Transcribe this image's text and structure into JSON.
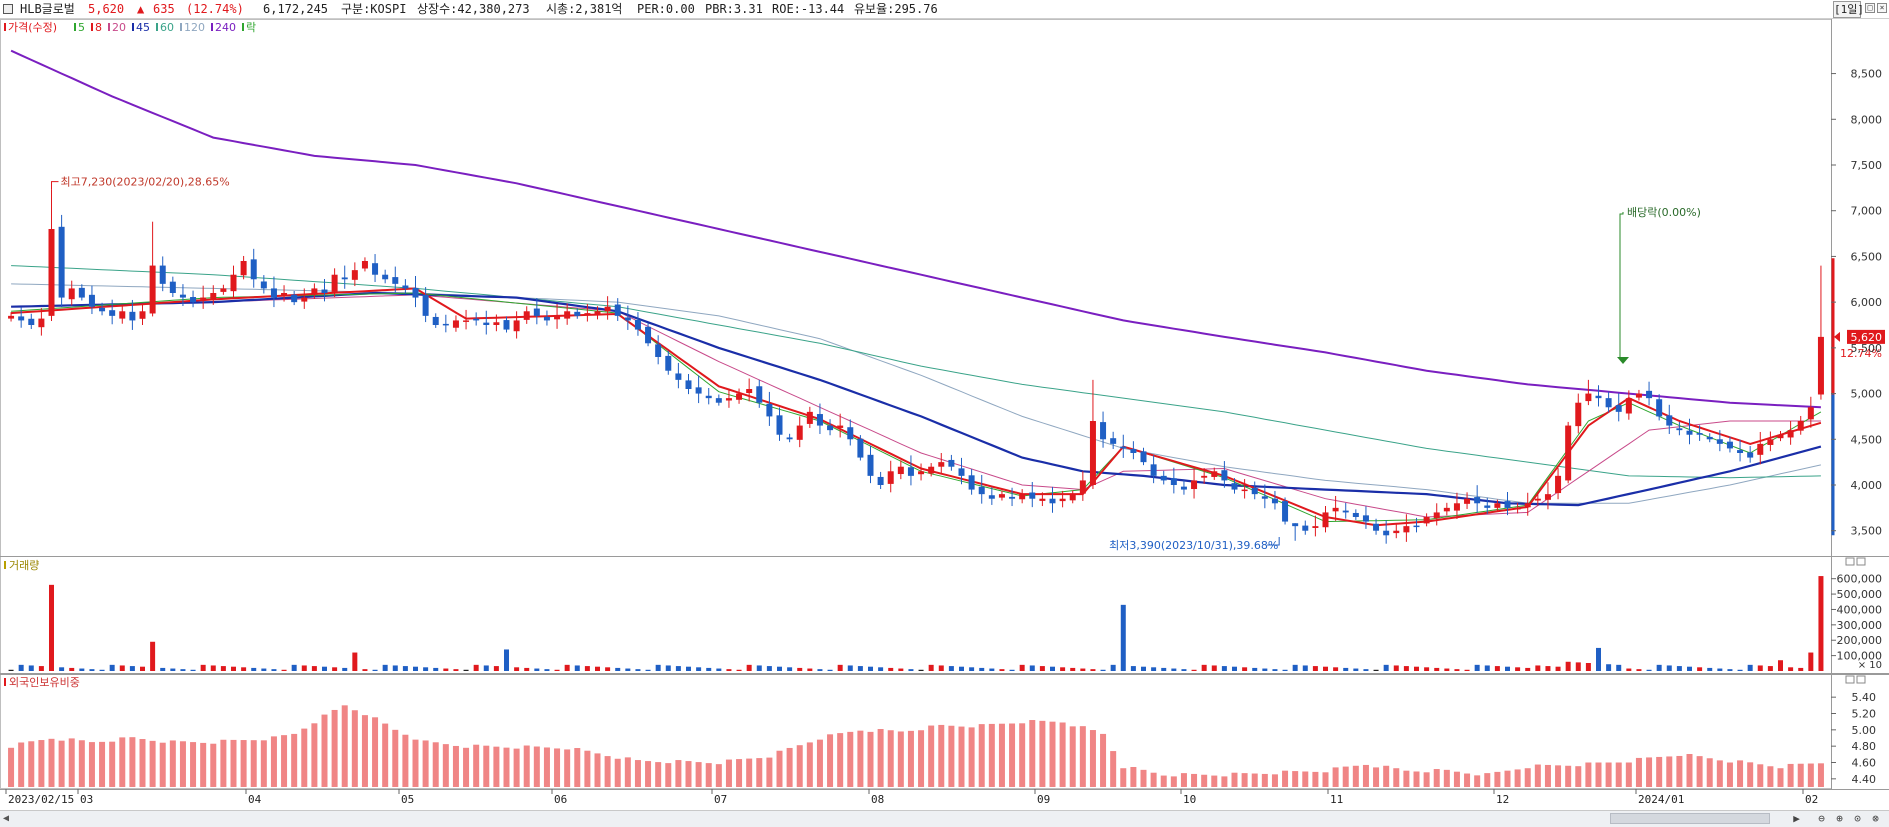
{
  "header": {
    "stock_name": "HLB글로벌",
    "price": "5,620",
    "change_arrow": "▲",
    "change": "635",
    "change_pct": "(12.74%)",
    "volume": "6,172,245",
    "market": "구분:KOSPI",
    "shares": "상장수:42,380,273",
    "market_cap": "시총:2,381억",
    "per": "PER:0.00",
    "pbr": "PBR:3.31",
    "roe": "ROE:-13.44",
    "retention": "유보율:295.76",
    "period": "[1일]"
  },
  "colors": {
    "up": "#e0191d",
    "down": "#1f5fc4",
    "ma5": "#2fa62f",
    "ma20": "#c84a8a",
    "ma45": "#1a2ea8",
    "ma60": "#3aa389",
    "ma120": "#8fa7c0",
    "ma240": "#7a1fc0",
    "foreign_bar": "#f08585"
  },
  "price_panel": {
    "legend": [
      {
        "label": "가격(수정)",
        "color": "#e0191d"
      },
      {
        "label": "5",
        "color": "#2fa62f"
      },
      {
        "label": "8",
        "color": "#e0191d"
      },
      {
        "label": "20",
        "color": "#c84a8a"
      },
      {
        "label": "45",
        "color": "#1a2ea8"
      },
      {
        "label": "60",
        "color": "#3aa389"
      },
      {
        "label": "120",
        "color": "#8fa7c0"
      },
      {
        "label": "240",
        "color": "#7a1fc0"
      },
      {
        "label": "락",
        "color": "#2fa62f"
      }
    ],
    "y_ticks": [
      "8,500",
      "8,000",
      "7,500",
      "7,000",
      "6,500",
      "6,000",
      "5,500",
      "5,000",
      "4,500",
      "4,000",
      "3,500"
    ],
    "high_label": "최고7,230(2023/02/20),28.65%",
    "low_label": "최저3,390(2023/10/31),39.68%",
    "dividend_label": "배당락(0.00%)",
    "current_price_tag": "5,620",
    "current_pct_tag": "12.74%"
  },
  "volume_panel": {
    "title": "거래량",
    "y_ticks": [
      "600,000",
      "500,000",
      "400,000",
      "300,000",
      "200,000",
      "100,000"
    ],
    "unit": "× 10"
  },
  "foreign_panel": {
    "title": "외국인보유비중",
    "y_ticks": [
      "5.40",
      "5.20",
      "5.00",
      "4.80",
      "4.60",
      "4.40"
    ]
  },
  "x_axis": {
    "labels": [
      "2023/02/15",
      "03",
      "04",
      "05",
      "06",
      "07",
      "08",
      "09",
      "10",
      "11",
      "12",
      "2024/01",
      "02"
    ]
  },
  "chart_data": {
    "type": "candlestick",
    "x_range": [
      "2023/02/15",
      "2024/01/29"
    ],
    "price_ylim": [
      3300,
      8900
    ],
    "volume_ylim": [
      0,
      650000
    ],
    "foreign_ylim": [
      4.3,
      5.5
    ],
    "anchors": {
      "high": {
        "date": "2023/02/20",
        "price": 7230
      },
      "low": {
        "date": "2023/10/31",
        "price": 3390
      },
      "last_close": 5620
    },
    "close_path": [
      [
        0,
        5850
      ],
      [
        2,
        5750
      ],
      [
        3,
        5820
      ],
      [
        4,
        6800
      ],
      [
        5,
        6050
      ],
      [
        6,
        6150
      ],
      [
        7,
        6050
      ],
      [
        8,
        5950
      ],
      [
        9,
        5900
      ],
      [
        10,
        5850
      ],
      [
        11,
        5900
      ],
      [
        12,
        5800
      ],
      [
        13,
        5900
      ],
      [
        14,
        6400
      ],
      [
        15,
        6200
      ],
      [
        16,
        6100
      ],
      [
        17,
        6050
      ],
      [
        18,
        6000
      ],
      [
        19,
        6050
      ],
      [
        20,
        6100
      ],
      [
        21,
        6150
      ],
      [
        22,
        6300
      ],
      [
        23,
        6450
      ],
      [
        24,
        6250
      ],
      [
        25,
        6150
      ],
      [
        26,
        6050
      ],
      [
        27,
        6100
      ],
      [
        28,
        6000
      ],
      [
        29,
        6050
      ],
      [
        30,
        6150
      ],
      [
        31,
        6100
      ],
      [
        32,
        6300
      ],
      [
        33,
        6250
      ],
      [
        34,
        6350
      ],
      [
        35,
        6450
      ],
      [
        36,
        6300
      ],
      [
        37,
        6250
      ],
      [
        38,
        6200
      ],
      [
        39,
        6150
      ],
      [
        40,
        6050
      ],
      [
        41,
        5850
      ],
      [
        42,
        5750
      ],
      [
        43,
        5750
      ],
      [
        44,
        5800
      ],
      [
        45,
        5800
      ],
      [
        46,
        5800
      ],
      [
        47,
        5750
      ],
      [
        48,
        5780
      ],
      [
        49,
        5700
      ],
      [
        50,
        5800
      ],
      [
        51,
        5900
      ],
      [
        52,
        5850
      ],
      [
        53,
        5800
      ],
      [
        54,
        5850
      ],
      [
        55,
        5900
      ],
      [
        56,
        5850
      ],
      [
        57,
        5880
      ],
      [
        58,
        5900
      ],
      [
        59,
        5950
      ],
      [
        60,
        5850
      ],
      [
        61,
        5800
      ],
      [
        62,
        5700
      ],
      [
        63,
        5550
      ],
      [
        64,
        5400
      ],
      [
        65,
        5250
      ],
      [
        66,
        5150
      ],
      [
        67,
        5050
      ],
      [
        68,
        5000
      ],
      [
        69,
        4950
      ],
      [
        70,
        4900
      ],
      [
        71,
        4950
      ],
      [
        72,
        5000
      ],
      [
        73,
        5050
      ],
      [
        74,
        4900
      ],
      [
        75,
        4750
      ],
      [
        76,
        4550
      ],
      [
        77,
        4500
      ],
      [
        78,
        4650
      ],
      [
        79,
        4800
      ],
      [
        80,
        4650
      ],
      [
        81,
        4600
      ],
      [
        82,
        4650
      ],
      [
        83,
        4500
      ],
      [
        84,
        4300
      ],
      [
        85,
        4100
      ],
      [
        86,
        4000
      ],
      [
        87,
        4150
      ],
      [
        88,
        4200
      ],
      [
        89,
        4100
      ],
      [
        90,
        4150
      ],
      [
        91,
        4200
      ],
      [
        92,
        4250
      ],
      [
        93,
        4200
      ],
      [
        94,
        4100
      ],
      [
        95,
        3950
      ],
      [
        96,
        3900
      ],
      [
        97,
        3850
      ],
      [
        98,
        3900
      ],
      [
        99,
        3850
      ],
      [
        100,
        3900
      ],
      [
        101,
        3850
      ],
      [
        102,
        3850
      ],
      [
        103,
        3800
      ],
      [
        104,
        3850
      ],
      [
        105,
        3900
      ],
      [
        106,
        4050
      ],
      [
        107,
        4700
      ],
      [
        108,
        4500
      ],
      [
        109,
        4450
      ],
      [
        110,
        4400
      ],
      [
        111,
        4350
      ],
      [
        112,
        4250
      ],
      [
        113,
        4100
      ],
      [
        114,
        4050
      ],
      [
        115,
        4000
      ],
      [
        116,
        3950
      ],
      [
        117,
        4050
      ],
      [
        118,
        4100
      ],
      [
        119,
        4150
      ],
      [
        120,
        4050
      ],
      [
        121,
        3950
      ],
      [
        122,
        3950
      ],
      [
        123,
        3900
      ],
      [
        124,
        3850
      ],
      [
        125,
        3800
      ],
      [
        126,
        3600
      ],
      [
        127,
        3550
      ],
      [
        128,
        3500
      ],
      [
        129,
        3550
      ],
      [
        130,
        3700
      ],
      [
        131,
        3750
      ],
      [
        132,
        3700
      ],
      [
        133,
        3650
      ],
      [
        134,
        3600
      ],
      [
        135,
        3500
      ],
      [
        136,
        3450
      ],
      [
        137,
        3500
      ],
      [
        138,
        3550
      ],
      [
        139,
        3550
      ],
      [
        140,
        3650
      ],
      [
        141,
        3700
      ],
      [
        142,
        3750
      ],
      [
        143,
        3800
      ],
      [
        144,
        3850
      ],
      [
        145,
        3800
      ],
      [
        146,
        3750
      ],
      [
        147,
        3800
      ],
      [
        148,
        3750
      ],
      [
        149,
        3750
      ],
      [
        150,
        3800
      ],
      [
        151,
        3850
      ],
      [
        152,
        3900
      ],
      [
        153,
        4100
      ],
      [
        154,
        4650
      ],
      [
        155,
        4900
      ],
      [
        156,
        5000
      ],
      [
        157,
        4950
      ],
      [
        158,
        4850
      ],
      [
        159,
        4800
      ],
      [
        160,
        4950
      ],
      [
        161,
        5000
      ],
      [
        162,
        4950
      ],
      [
        163,
        4750
      ],
      [
        164,
        4650
      ],
      [
        165,
        4600
      ],
      [
        166,
        4550
      ],
      [
        167,
        4550
      ],
      [
        168,
        4500
      ],
      [
        169,
        4450
      ],
      [
        170,
        4400
      ],
      [
        171,
        4350
      ],
      [
        172,
        4300
      ],
      [
        173,
        4450
      ],
      [
        174,
        4500
      ],
      [
        175,
        4550
      ],
      [
        176,
        4600
      ],
      [
        177,
        4700
      ],
      [
        178,
        4850
      ],
      [
        179,
        5620
      ]
    ],
    "ma_paths": {
      "ma5": [
        [
          0,
          5900
        ],
        [
          20,
          6050
        ],
        [
          40,
          6100
        ],
        [
          60,
          5880
        ],
        [
          70,
          5020
        ],
        [
          80,
          4700
        ],
        [
          90,
          4150
        ],
        [
          100,
          3880
        ],
        [
          106,
          3950
        ],
        [
          110,
          4420
        ],
        [
          120,
          4080
        ],
        [
          130,
          3600
        ],
        [
          140,
          3620
        ],
        [
          150,
          3780
        ],
        [
          156,
          4700
        ],
        [
          160,
          4900
        ],
        [
          165,
          4650
        ],
        [
          172,
          4350
        ],
        [
          179,
          4800
        ]
      ],
      "ma8": [
        [
          0,
          5880
        ],
        [
          20,
          6030
        ],
        [
          40,
          6150
        ],
        [
          45,
          5820
        ],
        [
          60,
          5870
        ],
        [
          70,
          5080
        ],
        [
          80,
          4720
        ],
        [
          90,
          4180
        ],
        [
          100,
          3900
        ],
        [
          106,
          3900
        ],
        [
          110,
          4420
        ],
        [
          120,
          4100
        ],
        [
          130,
          3650
        ],
        [
          135,
          3560
        ],
        [
          140,
          3600
        ],
        [
          150,
          3760
        ],
        [
          156,
          4650
        ],
        [
          160,
          4950
        ],
        [
          165,
          4700
        ],
        [
          172,
          4450
        ],
        [
          179,
          4680
        ]
      ],
      "ma20": [
        [
          0,
          5950
        ],
        [
          20,
          6000
        ],
        [
          40,
          6080
        ],
        [
          60,
          5900
        ],
        [
          70,
          5350
        ],
        [
          80,
          4850
        ],
        [
          90,
          4350
        ],
        [
          100,
          4000
        ],
        [
          106,
          3950
        ],
        [
          110,
          4150
        ],
        [
          120,
          4180
        ],
        [
          130,
          3850
        ],
        [
          140,
          3650
        ],
        [
          150,
          3700
        ],
        [
          156,
          4150
        ],
        [
          162,
          4600
        ],
        [
          170,
          4700
        ],
        [
          179,
          4700
        ]
      ],
      "ma45": [
        [
          0,
          5950
        ],
        [
          20,
          6000
        ],
        [
          36,
          6100
        ],
        [
          50,
          6050
        ],
        [
          60,
          5900
        ],
        [
          70,
          5500
        ],
        [
          80,
          5150
        ],
        [
          90,
          4750
        ],
        [
          100,
          4300
        ],
        [
          106,
          4150
        ],
        [
          112,
          4100
        ],
        [
          120,
          4000
        ],
        [
          130,
          3950
        ],
        [
          140,
          3900
        ],
        [
          148,
          3800
        ],
        [
          155,
          3780
        ],
        [
          162,
          3950
        ],
        [
          170,
          4150
        ],
        [
          179,
          4420
        ]
      ],
      "ma60": [
        [
          0,
          6400
        ],
        [
          20,
          6300
        ],
        [
          40,
          6150
        ],
        [
          60,
          5950
        ],
        [
          70,
          5750
        ],
        [
          80,
          5550
        ],
        [
          90,
          5300
        ],
        [
          100,
          5100
        ],
        [
          110,
          4950
        ],
        [
          120,
          4800
        ],
        [
          130,
          4600
        ],
        [
          140,
          4400
        ],
        [
          150,
          4250
        ],
        [
          160,
          4100
        ],
        [
          170,
          4080
        ],
        [
          179,
          4100
        ]
      ],
      "ma120": [
        [
          0,
          6200
        ],
        [
          20,
          6150
        ],
        [
          40,
          6100
        ],
        [
          60,
          6000
        ],
        [
          70,
          5850
        ],
        [
          80,
          5600
        ],
        [
          90,
          5200
        ],
        [
          100,
          4750
        ],
        [
          110,
          4400
        ],
        [
          120,
          4200
        ],
        [
          130,
          4050
        ],
        [
          140,
          3950
        ],
        [
          150,
          3800
        ],
        [
          160,
          3800
        ],
        [
          170,
          4000
        ],
        [
          179,
          4220
        ]
      ],
      "ma240": [
        [
          0,
          8750
        ],
        [
          10,
          8250
        ],
        [
          20,
          7800
        ],
        [
          30,
          7600
        ],
        [
          40,
          7500
        ],
        [
          50,
          7300
        ],
        [
          60,
          7050
        ],
        [
          70,
          6800
        ],
        [
          80,
          6550
        ],
        [
          90,
          6300
        ],
        [
          100,
          6050
        ],
        [
          110,
          5800
        ],
        [
          120,
          5620
        ],
        [
          130,
          5450
        ],
        [
          140,
          5250
        ],
        [
          150,
          5100
        ],
        [
          160,
          5000
        ],
        [
          170,
          4900
        ],
        [
          179,
          4850
        ]
      ]
    },
    "volume_spikes": [
      [
        4,
        560000
      ],
      [
        14,
        190000
      ],
      [
        34,
        120000
      ],
      [
        49,
        140000
      ],
      [
        110,
        430000
      ],
      [
        157,
        150000
      ],
      [
        175,
        70000
      ],
      [
        178,
        120000
      ],
      [
        179,
        617000
      ]
    ],
    "foreign_path": [
      [
        0,
        4.8
      ],
      [
        4,
        4.9
      ],
      [
        8,
        4.85
      ],
      [
        12,
        4.9
      ],
      [
        16,
        4.85
      ],
      [
        20,
        4.85
      ],
      [
        26,
        4.9
      ],
      [
        28,
        4.95
      ],
      [
        30,
        5.1
      ],
      [
        33,
        5.3
      ],
      [
        35,
        5.2
      ],
      [
        38,
        5.0
      ],
      [
        41,
        4.85
      ],
      [
        45,
        4.8
      ],
      [
        55,
        4.78
      ],
      [
        62,
        4.62
      ],
      [
        70,
        4.6
      ],
      [
        75,
        4.68
      ],
      [
        80,
        4.9
      ],
      [
        84,
        5.0
      ],
      [
        88,
        4.98
      ],
      [
        92,
        5.05
      ],
      [
        96,
        5.05
      ],
      [
        100,
        5.1
      ],
      [
        104,
        5.1
      ],
      [
        108,
        4.95
      ],
      [
        110,
        4.55
      ],
      [
        114,
        4.45
      ],
      [
        120,
        4.45
      ],
      [
        130,
        4.5
      ],
      [
        134,
        4.58
      ],
      [
        138,
        4.5
      ],
      [
        142,
        4.5
      ],
      [
        146,
        4.45
      ],
      [
        150,
        4.55
      ],
      [
        156,
        4.58
      ],
      [
        160,
        4.62
      ],
      [
        165,
        4.7
      ],
      [
        170,
        4.62
      ],
      [
        175,
        4.55
      ],
      [
        179,
        4.6
      ]
    ],
    "x_labels": [
      "2023/02/15",
      "03",
      "04",
      "05",
      "06",
      "07",
      "08",
      "09",
      "10",
      "11",
      "12",
      "2024/01",
      "02"
    ],
    "title": "",
    "xlabel": "",
    "ylabel": ""
  }
}
